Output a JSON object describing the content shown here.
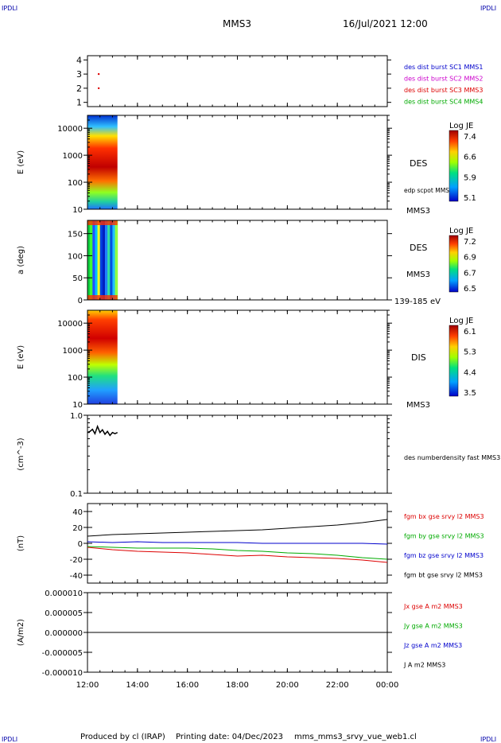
{
  "header": {
    "corner_label": "IPDLI",
    "mission": "MMS3",
    "datetime": "16/Jul/2021 12:00"
  },
  "footer": {
    "produced_by": "Produced by cl (IRAP)",
    "printing_date": "Printing date: 04/Dec/2023",
    "filename": "mms_mms3_srvy_vue_web1.cl"
  },
  "time_axis": {
    "ticks": [
      "12:00",
      "14:00",
      "16:00",
      "18:00",
      "20:00",
      "22:00",
      "00:00"
    ],
    "start_hour": 12,
    "end_hour": 24
  },
  "chart_data": [
    {
      "id": "p1",
      "type": "scatter",
      "ylim": [
        0.7,
        4.3
      ],
      "yticks": [
        "1",
        "2",
        "3",
        "4"
      ],
      "series": [
        {
          "x": [
            12.45,
            12.45
          ],
          "y": [
            3.0,
            2.0
          ],
          "color": "#dd0000"
        }
      ],
      "labels": [
        {
          "text": "des dist burst SC1 MMS1",
          "color": "#0000cc"
        },
        {
          "text": "des dist burst SC2 MMS2",
          "color": "#cc00cc"
        },
        {
          "text": "des dist burst SC3 MMS3",
          "color": "#dd0000"
        },
        {
          "text": "des dist burst SC4 MMS4",
          "color": "#00aa00"
        }
      ]
    },
    {
      "id": "p2",
      "type": "heatmap",
      "scale": "log",
      "ylabel": "E (eV)",
      "ylim": [
        10,
        30000
      ],
      "yticks": [
        {
          "v": 10,
          "t": "10"
        },
        {
          "v": 100,
          "t": "100"
        },
        {
          "v": 1000,
          "t": "1000"
        },
        {
          "v": 10000,
          "t": "10000"
        }
      ],
      "data_range_hours": [
        12.0,
        13.2
      ],
      "labels": [
        "DES",
        "edp scpot MMS3",
        "MMS3"
      ],
      "colorbar": {
        "title": "Log JE",
        "ticks": [
          "7.4",
          "6.6",
          "5.9",
          "5.1"
        ]
      }
    },
    {
      "id": "p3",
      "type": "heatmap",
      "ylabel": "a (deg)",
      "ylim": [
        0,
        180
      ],
      "yticks": [
        {
          "v": 0,
          "t": "0"
        },
        {
          "v": 50,
          "t": "50"
        },
        {
          "v": 100,
          "t": "100"
        },
        {
          "v": 150,
          "t": "150"
        }
      ],
      "data_range_hours": [
        12.0,
        13.2
      ],
      "labels": [
        "DES",
        "MMS3",
        "139-185 eV"
      ],
      "colorbar": {
        "title": "Log JE",
        "ticks": [
          "7.2",
          "6.9",
          "6.7",
          "6.5"
        ]
      }
    },
    {
      "id": "p4",
      "type": "heatmap",
      "scale": "log",
      "ylabel": "E (eV)",
      "ylim": [
        10,
        30000
      ],
      "yticks": [
        {
          "v": 10,
          "t": "10"
        },
        {
          "v": 100,
          "t": "100"
        },
        {
          "v": 1000,
          "t": "1000"
        },
        {
          "v": 10000,
          "t": "10000"
        }
      ],
      "data_range_hours": [
        12.0,
        13.2
      ],
      "labels": [
        "DIS",
        "MMS3"
      ],
      "colorbar": {
        "title": "Log JE",
        "ticks": [
          "6.1",
          "5.3",
          "4.4",
          "3.5"
        ]
      }
    },
    {
      "id": "p5",
      "type": "line",
      "scale": "log",
      "ylabel": "(cm^-3)",
      "ylim": [
        0.1,
        1.0
      ],
      "yticks": [
        {
          "v": 0.1,
          "t": "0.1"
        },
        {
          "v": 1.0,
          "t": "1.0"
        }
      ],
      "series": [
        {
          "name": "des numberdensity fast MMS3",
          "color": "#000000",
          "x": [
            12.0,
            12.1,
            12.2,
            12.3,
            12.4,
            12.5,
            12.6,
            12.7,
            12.8,
            12.9,
            13.0,
            13.1,
            13.2
          ],
          "y": [
            0.6,
            0.62,
            0.66,
            0.58,
            0.72,
            0.6,
            0.65,
            0.57,
            0.62,
            0.55,
            0.6,
            0.58,
            0.6
          ]
        }
      ],
      "labels": [
        {
          "text": "des numberdensity fast MMS3",
          "color": "#000000"
        }
      ]
    },
    {
      "id": "p6",
      "type": "line",
      "ylabel": "(nT)",
      "ylim": [
        -50,
        50
      ],
      "yticks": [
        {
          "v": -40,
          "t": "-40"
        },
        {
          "v": -20,
          "t": "-20"
        },
        {
          "v": 0,
          "t": "0"
        },
        {
          "v": 20,
          "t": "20"
        },
        {
          "v": 40,
          "t": "40"
        }
      ],
      "series": [
        {
          "name": "fgm bx gse srvy l2 MMS3",
          "color": "#dd0000",
          "x": [
            12,
            13,
            14,
            15,
            16,
            17,
            18,
            19,
            20,
            21,
            22,
            23,
            24
          ],
          "y": [
            -5,
            -8,
            -10,
            -11,
            -12,
            -14,
            -16,
            -15,
            -17,
            -18,
            -19,
            -21,
            -24
          ]
        },
        {
          "name": "fgm by gse srvy l2 MMS3",
          "color": "#00aa00",
          "x": [
            12,
            13,
            14,
            15,
            16,
            17,
            18,
            19,
            20,
            21,
            22,
            23,
            24
          ],
          "y": [
            -4,
            -5,
            -6,
            -6,
            -6,
            -7,
            -9,
            -10,
            -12,
            -13,
            -15,
            -18,
            -20
          ]
        },
        {
          "name": "fgm bz gse srvy l2 MMS3",
          "color": "#0000cc",
          "x": [
            12,
            13,
            14,
            15,
            16,
            17,
            18,
            19,
            20,
            21,
            22,
            23,
            24
          ],
          "y": [
            2,
            1,
            2,
            1,
            1,
            1,
            1,
            0,
            0,
            0,
            0,
            0,
            -1
          ]
        },
        {
          "name": "fgm bt gse srvy l2 MMS3",
          "color": "#000000",
          "x": [
            12,
            13,
            14,
            15,
            16,
            17,
            18,
            19,
            20,
            21,
            22,
            23,
            24
          ],
          "y": [
            9,
            11,
            12,
            13,
            14,
            15,
            16,
            17,
            19,
            21,
            23,
            26,
            30
          ]
        }
      ],
      "labels": [
        {
          "text": "fgm bx gse srvy l2 MMS3",
          "color": "#dd0000"
        },
        {
          "text": "fgm by gse srvy l2 MMS3",
          "color": "#00aa00"
        },
        {
          "text": "fgm bz gse srvy l2 MMS3",
          "color": "#0000cc"
        },
        {
          "text": "fgm bt gse srvy l2 MMS3",
          "color": "#000000"
        }
      ]
    },
    {
      "id": "p7",
      "type": "line",
      "ylabel": "(A/m2)",
      "ylim": [
        -1e-05,
        1e-05
      ],
      "yticks": [
        {
          "v": 1e-05,
          "t": "0.000010"
        },
        {
          "v": 5e-06,
          "t": "0.000005"
        },
        {
          "v": 0,
          "t": "0.000000"
        },
        {
          "v": -5e-06,
          "t": "-0.000005"
        },
        {
          "v": -1e-05,
          "t": "-0.000010"
        }
      ],
      "series": [
        {
          "name": "J A m2 MMS3",
          "color": "#000000",
          "x": [
            12,
            24
          ],
          "y": [
            0,
            0
          ]
        }
      ],
      "labels": [
        {
          "text": "Jx gse A m2 MMS3",
          "color": "#dd0000"
        },
        {
          "text": "Jy gse A m2 MMS3",
          "color": "#00aa00"
        },
        {
          "text": "Jz gse A m2 MMS3",
          "color": "#0000cc"
        },
        {
          "text": "J A m2 MMS3",
          "color": "#000000"
        }
      ]
    }
  ]
}
